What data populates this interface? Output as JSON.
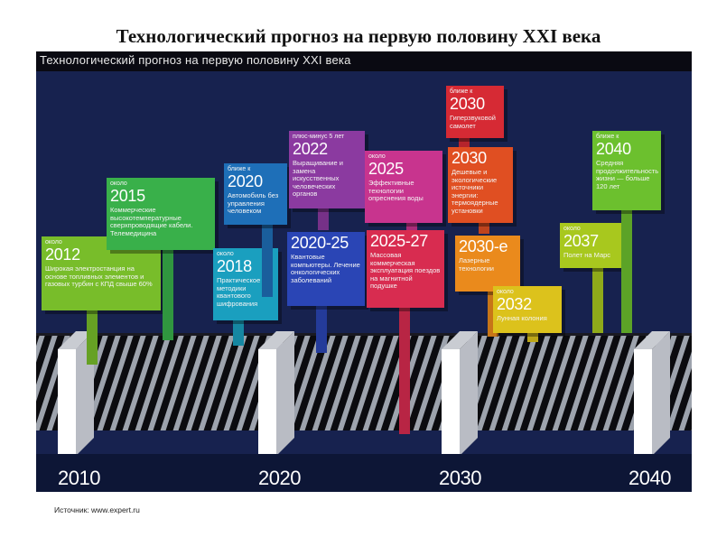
{
  "slide_title": "Технологический прогноз на первую половину XXI века",
  "panel_title": "Технологический прогноз на первую половину XXI века",
  "years": [
    "2010",
    "2020",
    "2030",
    "2040"
  ],
  "source": "Источник: www.expert.ru",
  "colors": {
    "background": "#17224f",
    "green": "#7cbf2a",
    "teal": "#1e8fb0",
    "blue": "#2a49b8",
    "purple": "#8a3a9c",
    "magenta": "#c23590",
    "red": "#d82a3a",
    "orange": "#e8731e",
    "yellow": "#d6c21a",
    "lime": "#a4c91e",
    "lightgreen": "#6fc02f"
  },
  "forecasts": [
    {
      "id": "2012",
      "color": "#78bd2a",
      "qualifier": "около",
      "year": "2012",
      "text": "Широкая электростанция на основе топливных элементов и газовых турбин с КПД свыше 60%"
    },
    {
      "id": "2015",
      "color": "#39b04a",
      "qualifier": "около",
      "year": "2015",
      "text": "Коммерческие высокотемпературные сверхпроводящие кабели. Телемедицина"
    },
    {
      "id": "2018",
      "color": "#1a9fbf",
      "qualifier": "около",
      "year": "2018",
      "text": "Практическое методики квантового шифрования"
    },
    {
      "id": "2020",
      "color": "#1e6fb8",
      "qualifier": "ближе к",
      "year": "2020",
      "text": "Автомобиль без управления человеком"
    },
    {
      "id": "2020-25",
      "color": "#2a45b5",
      "qualifier": "",
      "year": "2020-25",
      "text": "Квантовые компьютеры. Лечение онкологических заболеваний"
    },
    {
      "id": "2022",
      "color": "#8b3aa0",
      "qualifier": "плюс-минус 5 лет",
      "year": "2022",
      "text": "Выращивание и замена искусственных человеческих органов"
    },
    {
      "id": "2025",
      "color": "#c8348e",
      "qualifier": "около",
      "year": "2025",
      "text": "Эффективные технологии опреснения воды"
    },
    {
      "id": "2025-27",
      "color": "#d82c50",
      "qualifier": "",
      "year": "2025-27",
      "text": "Массовая коммерческая эксплуатация поездов на магнитной подушке"
    },
    {
      "id": "2030a",
      "color": "#d62a34",
      "qualifier": "ближе к",
      "year": "2030",
      "text": "Гиперзвуковой самолет"
    },
    {
      "id": "2030b",
      "color": "#e04f22",
      "qualifier": "",
      "year": "2030",
      "text": "Дешевые и экологические источники энергии: термоядерные установки"
    },
    {
      "id": "2030e",
      "color": "#ea8a1c",
      "qualifier": "",
      "year": "2030-е",
      "text": "Лазерные технологии"
    },
    {
      "id": "2032",
      "color": "#dcc21c",
      "qualifier": "около",
      "year": "2032",
      "text": "Лунная колония"
    },
    {
      "id": "2037",
      "color": "#a8c81e",
      "qualifier": "около",
      "year": "2037",
      "text": "Полет на Марс"
    },
    {
      "id": "2040",
      "color": "#6cc02e",
      "qualifier": "ближе к",
      "year": "2040",
      "text": "Средняя продолжительность жизни — больше 120 лет"
    }
  ]
}
